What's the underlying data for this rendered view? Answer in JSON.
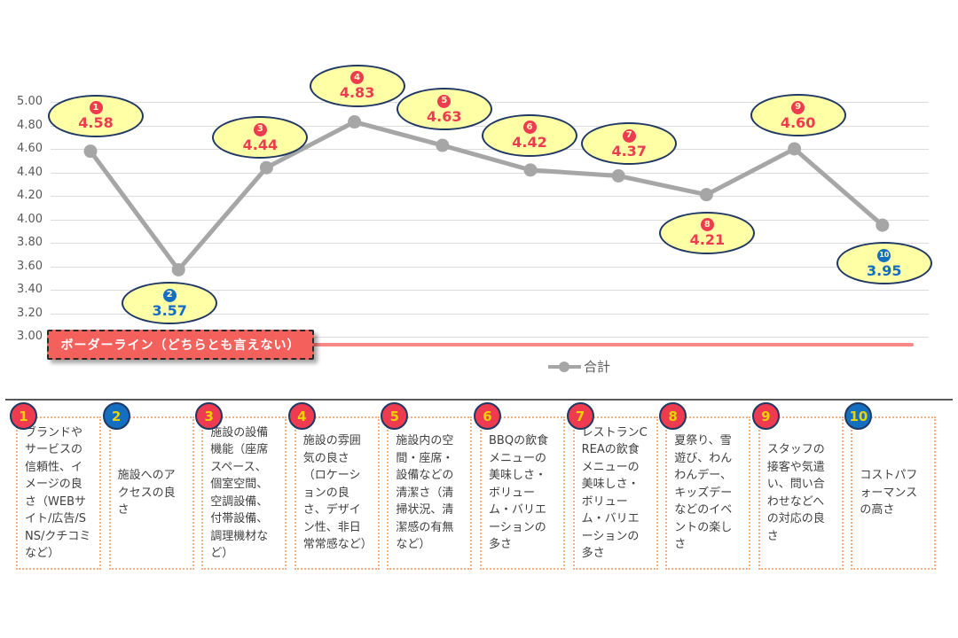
{
  "chart_data": {
    "type": "line",
    "title": "",
    "categories": [
      "1",
      "2",
      "3",
      "4",
      "5",
      "6",
      "7",
      "8",
      "9",
      "10"
    ],
    "series": [
      {
        "name": "合計",
        "values": [
          4.58,
          3.57,
          4.44,
          4.83,
          4.63,
          4.42,
          4.37,
          4.21,
          4.6,
          3.95
        ]
      }
    ],
    "ylim": [
      3.0,
      5.0
    ],
    "ytick_labels": [
      "5.00",
      "4.80",
      "4.60",
      "4.40",
      "4.20",
      "4.00",
      "3.80",
      "3.60",
      "3.40",
      "3.20",
      "3.00"
    ],
    "grid": true,
    "legend": {
      "label": "合計",
      "position": "bottom-center"
    },
    "borderline": {
      "value": 3.0,
      "label": "ボーダーライン（どちらとも言えない）"
    },
    "point_labels": [
      {
        "num": "1",
        "value": "4.58",
        "color": "red",
        "offset": [
          6,
          -40
        ]
      },
      {
        "num": "2",
        "value": "3.57",
        "color": "blue",
        "offset": [
          -10,
          38
        ]
      },
      {
        "num": "3",
        "value": "4.44",
        "color": "red",
        "offset": [
          -7,
          -34
        ]
      },
      {
        "num": "4",
        "value": "4.83",
        "color": "red",
        "offset": [
          3,
          -41
        ]
      },
      {
        "num": "5",
        "value": "4.63",
        "color": "red",
        "offset": [
          2,
          -41
        ]
      },
      {
        "num": "6",
        "value": "4.42",
        "color": "red",
        "offset": [
          -1,
          -39
        ]
      },
      {
        "num": "7",
        "value": "4.37",
        "color": "red",
        "offset": [
          12,
          -36
        ]
      },
      {
        "num": "8",
        "value": "4.21",
        "color": "red",
        "offset": [
          1,
          43
        ]
      },
      {
        "num": "9",
        "value": "4.60",
        "color": "red",
        "offset": [
          4,
          -38
        ]
      },
      {
        "num": "10",
        "value": "3.95",
        "color": "blue",
        "offset": [
          2,
          43
        ]
      }
    ]
  },
  "colors": {
    "series_line": "#a6a6a6",
    "grid": "#dcdcdc",
    "axis_text": "#595959",
    "callout_fill": "#ffffa6",
    "callout_border": "#1f3864",
    "red": "#ee3b4f",
    "blue": "#156fc1",
    "banner_bg": "#f4605c",
    "banner_text": "#ffffff",
    "borderline_line": "#f98784",
    "item_box_border": "#f4b183",
    "item_text": "#3f3f3f",
    "badge_number_yellow": "#e9d400",
    "divider": "#595959"
  },
  "items": [
    {
      "num": "1",
      "color": "red",
      "text": "ブランドやサービスの信頼性、イメージの良さ（WEBサイト/広告/SNS/クチコミなど）"
    },
    {
      "num": "2",
      "color": "blue",
      "text": "施設へのアクセスの良さ"
    },
    {
      "num": "3",
      "color": "red",
      "text": "施設の設備機能（座席スペース、個室空間、空調設備、付帯設備、調理機材など）"
    },
    {
      "num": "4",
      "color": "red",
      "text": "施設の雰囲気の良さ（ロケーションの良さ、デザイン性、非日常常感など）"
    },
    {
      "num": "5",
      "color": "red",
      "text": "施設内の空間・座席・設備などの清潔さ（清掃状況、清潔感の有無など）"
    },
    {
      "num": "6",
      "color": "red",
      "text": "BBQの飲食メニューの美味しさ・ボリューム・バリエーションの多さ"
    },
    {
      "num": "7",
      "color": "red",
      "text": "レストランCREAの飲食メニューの美味しさ・ボリューム・バリエーションの多さ"
    },
    {
      "num": "8",
      "color": "red",
      "text": "夏祭り、雪遊び、わんわんデー、キッズデーなどのイベントの楽しさ"
    },
    {
      "num": "9",
      "color": "red",
      "text": "スタッフの接客や気遣い、問い合わせなどへの対応の良さ"
    },
    {
      "num": "10",
      "color": "blue",
      "text": "コストパフォーマンスの高さ"
    }
  ]
}
